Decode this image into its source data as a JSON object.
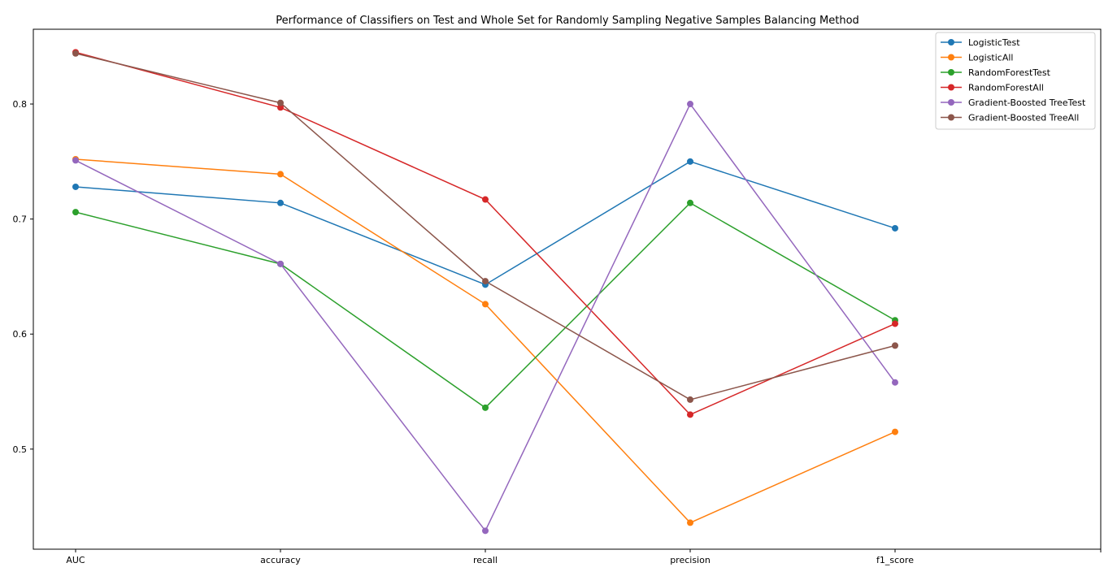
{
  "chart_data": {
    "type": "line",
    "title": "Performance of Classifiers on Test and Whole Set for Randomly Sampling Negative Samples Balancing Method",
    "xlabel": "",
    "ylabel": "",
    "categories": [
      "AUC",
      "accuracy",
      "recall",
      "precision",
      "f1_score"
    ],
    "yticks": [
      0.5,
      0.6,
      0.7,
      0.8
    ],
    "ytick_labels": [
      "0.5",
      "0.6",
      "0.7",
      "0.8"
    ],
    "ylim": [
      0.413,
      0.865
    ],
    "grid": false,
    "legend_position": "top-right",
    "series": [
      {
        "name": "LogisticTest",
        "color": "#1f77b4",
        "values": [
          0.728,
          0.714,
          0.643,
          0.75,
          0.692
        ]
      },
      {
        "name": "LogisticAll",
        "color": "#ff7f0e",
        "values": [
          0.752,
          0.739,
          0.626,
          0.436,
          0.515
        ]
      },
      {
        "name": "RandomForestTest",
        "color": "#2ca02c",
        "values": [
          0.706,
          0.661,
          0.536,
          0.714,
          0.612
        ]
      },
      {
        "name": "RandomForestAll",
        "color": "#d62728",
        "values": [
          0.845,
          0.797,
          0.717,
          0.53,
          0.609
        ]
      },
      {
        "name": "Gradient-Boosted TreeTest",
        "color": "#9467bd",
        "values": [
          0.751,
          0.661,
          0.429,
          0.8,
          0.558
        ]
      },
      {
        "name": "Gradient-Boosted TreeAll",
        "color": "#8c564b",
        "values": [
          0.844,
          0.801,
          0.646,
          0.543,
          0.59
        ]
      }
    ]
  }
}
